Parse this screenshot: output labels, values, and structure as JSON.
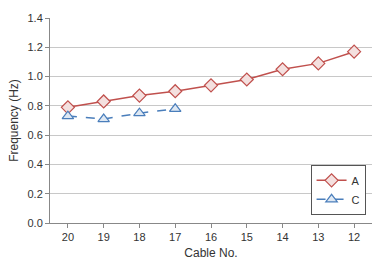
{
  "chart_data": {
    "type": "line",
    "x_label": "Cable No.",
    "y_label": "Frequency (Hz)",
    "categories": [
      "20",
      "19",
      "18",
      "17",
      "16",
      "15",
      "14",
      "13",
      "12"
    ],
    "series": [
      {
        "name": "A",
        "color": "#c0504d",
        "marker": "diamond",
        "line_style": "solid",
        "values": [
          0.79,
          0.83,
          0.87,
          0.9,
          0.94,
          0.98,
          1.05,
          1.09,
          1.17
        ]
      },
      {
        "name": "C",
        "color": "#4a7ebb",
        "marker": "triangle-up",
        "line_style": "dash",
        "values": [
          0.73,
          0.71,
          0.75,
          0.78,
          null,
          null,
          null,
          null,
          null
        ]
      }
    ],
    "ylim": [
      0,
      1.4
    ],
    "yticks": [
      {
        "value": 0,
        "label": "0.0"
      },
      0.2,
      0.4,
      0.6,
      0.8,
      {
        "value": 1,
        "label": "1.0"
      },
      1.2,
      1.4
    ],
    "grid": true,
    "legend": "lower right"
  }
}
